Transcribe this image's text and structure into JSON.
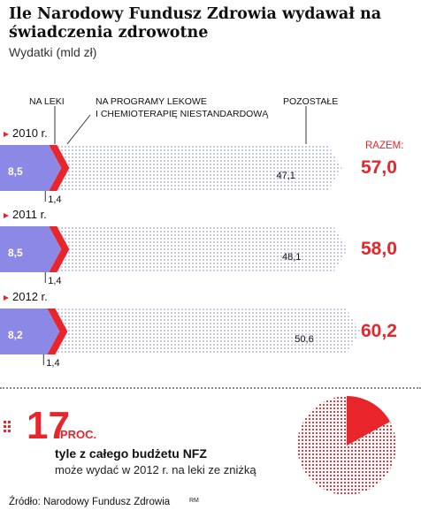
{
  "title": "Ile Narodowy Fundusz Zdrowia wydawał na świadczenia zdrowotne",
  "subtitle": "Wydatki (mld zł)",
  "labels": {
    "leki": "NA LEKI",
    "programy_1": "NA PROGRAMY LEKOWE",
    "programy_2": "I CHEMIOTERAPIĘ NIESTANDARDOWĄ",
    "pozostale": "POZOSTAŁE",
    "razem": "RAZEM:"
  },
  "colors": {
    "leki": "#8b88e6",
    "programy": "#e8252a",
    "pozostale": "#d2d4f4",
    "accent": "#e8252a"
  },
  "chart_data": {
    "type": "bar",
    "stacked": true,
    "orientation": "horizontal",
    "categories": [
      "2010 r.",
      "2011 r.",
      "2012 r."
    ],
    "series": [
      {
        "name": "NA LEKI",
        "values": [
          8.5,
          8.5,
          8.2
        ],
        "labels": [
          "8,5",
          "8,5",
          "8,2"
        ]
      },
      {
        "name": "NA PROGRAMY LEKOWE I CHEMIOTERAPIĘ NIESTANDARDOWĄ",
        "values": [
          1.4,
          1.4,
          1.4
        ],
        "labels": [
          "1,4",
          "1,4",
          "1,4"
        ]
      },
      {
        "name": "POZOSTAŁE",
        "values": [
          47.1,
          48.1,
          50.6
        ],
        "labels": [
          "47,1",
          "48,1",
          "50,6"
        ]
      }
    ],
    "totals": [
      57.0,
      58.0,
      60.2
    ],
    "total_labels": [
      "57,0",
      "58,0",
      "60,2"
    ],
    "xlim": [
      0,
      60.2
    ]
  },
  "pie": {
    "type": "pie",
    "share_percent": 17,
    "number": "17",
    "unit": "PROC.",
    "text_1": "tyle z całego budżetu NFZ",
    "text_2": "może wydać w 2012 r. na leki ze zniżką"
  },
  "footer": {
    "source": "Źródło: Narodowy Fundusz Zdrowia",
    "author": "RM"
  }
}
